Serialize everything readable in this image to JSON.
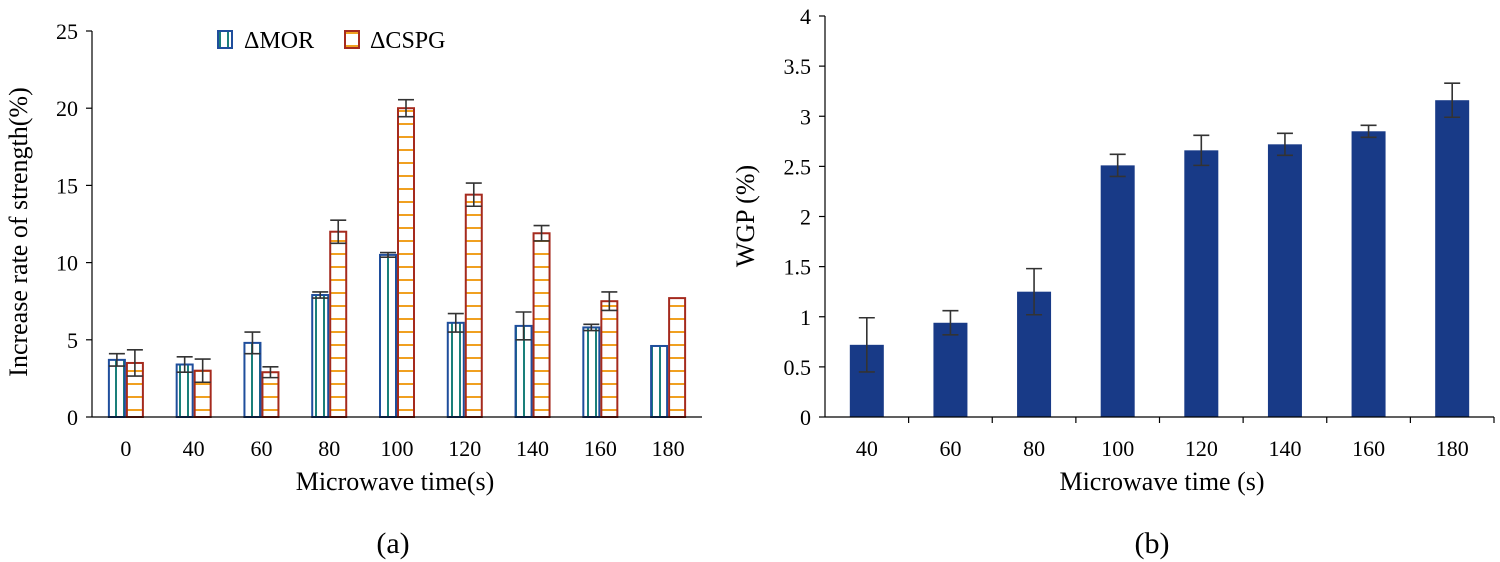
{
  "chart_data": [
    {
      "type": "bar",
      "panel_label": "(a)",
      "xlabel": "Microwave time(s)",
      "ylabel": "Increase rate of strength(%)",
      "ylim": [
        0,
        25
      ],
      "yticks": [
        "0",
        "5",
        "10",
        "15",
        "20",
        "25"
      ],
      "ytick_values": [
        0,
        5,
        10,
        15,
        20,
        25
      ],
      "categories": [
        "0",
        "40",
        "60",
        "80",
        "100",
        "120",
        "140",
        "160",
        "180"
      ],
      "legend_position": "top-center",
      "series": [
        {
          "name": "ΔMOR",
          "color": "#1f4e9c",
          "fill_line_color": "#1a7f7a",
          "values": [
            3.7,
            3.4,
            4.8,
            7.9,
            10.5,
            6.1,
            5.9,
            5.8,
            4.6
          ],
          "errors": [
            0.4,
            0.5,
            0.7,
            0.2,
            0.15,
            0.6,
            0.9,
            0.2,
            0
          ]
        },
        {
          "name": "ΔCSPG",
          "color": "#a52a1e",
          "fill_line_color": "#f0a020",
          "values": [
            3.5,
            3.0,
            2.9,
            12.0,
            20.0,
            14.4,
            11.9,
            7.5,
            7.7
          ],
          "errors": [
            0.85,
            0.75,
            0.35,
            0.75,
            0.55,
            0.75,
            0.5,
            0.6,
            0
          ]
        }
      ]
    },
    {
      "type": "bar",
      "panel_label": "(b)",
      "xlabel": "Microwave time (s)",
      "ylabel": "WGP (%)",
      "ylim": [
        0,
        4
      ],
      "yticks": [
        "0",
        "0.5",
        "1",
        "1.5",
        "2",
        "2.5",
        "3",
        "3.5",
        "4"
      ],
      "ytick_values": [
        0,
        0.5,
        1,
        1.5,
        2,
        2.5,
        3,
        3.5,
        4
      ],
      "categories": [
        "40",
        "60",
        "80",
        "100",
        "120",
        "140",
        "160",
        "180"
      ],
      "series": [
        {
          "name": "WGP",
          "color": "#183a87",
          "values": [
            0.72,
            0.94,
            1.25,
            2.51,
            2.66,
            2.72,
            2.85,
            3.16
          ],
          "errors": [
            0.27,
            0.12,
            0.23,
            0.11,
            0.15,
            0.11,
            0.06,
            0.17
          ]
        }
      ]
    }
  ]
}
